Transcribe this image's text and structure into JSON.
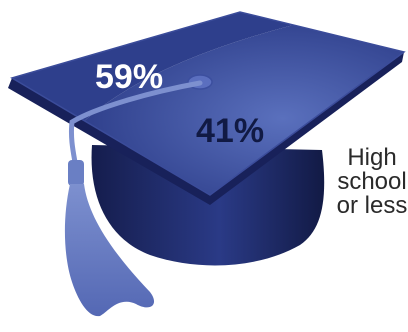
{
  "chart_data": {
    "type": "pie",
    "slices": [
      {
        "label": "59%",
        "value": 59
      },
      {
        "label": "41%",
        "value": 41
      }
    ],
    "annotation": [
      "High",
      "school",
      "or less"
    ]
  },
  "colors": {
    "slice_59": "#2e3f8c",
    "slice_41": "#4d63ae",
    "cap_body": "#1e2a66",
    "tassel": "#6a7fc4",
    "text_on_chart": "#ffffff",
    "text_side": "#2a2a2a"
  }
}
